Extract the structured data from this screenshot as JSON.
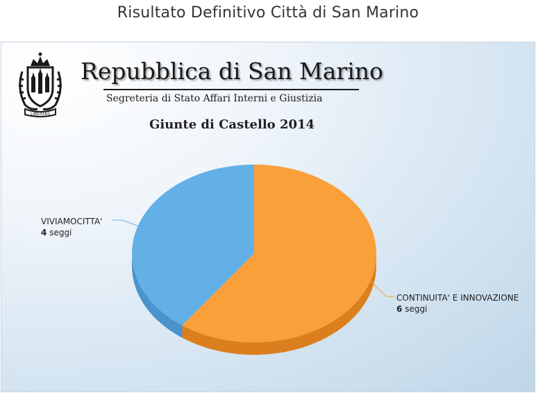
{
  "page": {
    "title": "Risultato Definitivo Città di San Marino"
  },
  "header": {
    "title": "Repubblica di San Marino",
    "subtitle": "Segreteria di Stato Affari Interni e Giustizia",
    "caption": "Giunte di Castello 2014",
    "crest_motto": "LIBERTAS"
  },
  "chart_data": {
    "type": "pie",
    "title": "",
    "unit": "seggi",
    "slices": [
      {
        "name": "CONTINUITA' E INNOVAZIONE",
        "value": 6,
        "color": "#F9A03A",
        "side_color": "#DB7F1E"
      },
      {
        "name": "VIVIAMOCITTA'",
        "value": 4,
        "color": "#63B0E6",
        "side_color": "#4A93CC"
      }
    ],
    "style": "3d"
  }
}
